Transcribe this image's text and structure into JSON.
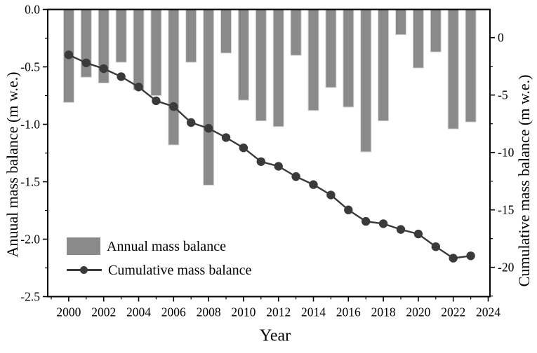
{
  "chart_data": {
    "type": "bar+line",
    "title": "",
    "xlabel": "Year",
    "ylabel_left": "Anuual mass balance (m w.e.)",
    "ylabel_right": "Cumulative mass balance (m w.e.)",
    "years": [
      2000,
      2001,
      2002,
      2003,
      2004,
      2005,
      2006,
      2007,
      2008,
      2009,
      2010,
      2011,
      2012,
      2013,
      2014,
      2015,
      2016,
      2017,
      2018,
      2019,
      2020,
      2021,
      2022,
      2023
    ],
    "series": [
      {
        "name": "Annual mass balance",
        "type": "bar",
        "axis": "left",
        "color": "#8a8a8a",
        "edge_color": "#d8d8d8",
        "values": [
          -0.81,
          -0.59,
          -0.64,
          -0.46,
          -0.7,
          -0.75,
          -1.18,
          -0.46,
          -1.53,
          -0.38,
          -0.79,
          -0.97,
          -1.02,
          -0.4,
          -0.88,
          -0.68,
          -0.85,
          -1.24,
          -0.97,
          -0.22,
          -0.51,
          -0.37,
          -1.04,
          -0.98
        ]
      },
      {
        "name": "Cumulative mass balance",
        "type": "line",
        "axis": "right",
        "color": "#3a3a3a",
        "values": [
          -1.5,
          -2.2,
          -2.7,
          -3.4,
          -4.3,
          -5.5,
          -6.0,
          -7.4,
          -7.9,
          -8.7,
          -9.6,
          -10.8,
          -11.2,
          -12.1,
          -12.8,
          -13.7,
          -15.0,
          -16.0,
          -16.2,
          -16.7,
          -17.1,
          -18.2,
          -19.2,
          -19.0
        ]
      }
    ],
    "xlim": [
      1998.8,
      2024.1
    ],
    "ylim_left": [
      0,
      -2.5
    ],
    "ylim_right": [
      2.45,
      -22.55
    ],
    "xticks": {
      "values": [
        2000,
        2002,
        2004,
        2006,
        2008,
        2010,
        2012,
        2014,
        2016,
        2018,
        2020,
        2022,
        2024
      ],
      "labels": [
        "2000",
        "2002",
        "2004",
        "2006",
        "2008",
        "2010",
        "2012",
        "2014",
        "2016",
        "2018",
        "2020",
        "2022",
        "2024"
      ],
      "minor": [
        1999,
        2001,
        2003,
        2005,
        2007,
        2009,
        2011,
        2013,
        2015,
        2017,
        2019,
        2021,
        2023
      ]
    },
    "yticks_left": {
      "values": [
        0,
        -0.5,
        -1.0,
        -1.5,
        -2.0,
        -2.5
      ],
      "labels": [
        "0.0",
        "-0.5",
        "-1.0",
        "-1.5",
        "-2.0",
        "-2.5"
      ],
      "minor": [
        -0.25,
        -0.75,
        -1.25,
        -1.75,
        -2.25
      ]
    },
    "yticks_right": {
      "values": [
        0,
        -5,
        -10,
        -15,
        -20
      ],
      "labels": [
        "0",
        "-5",
        "-10",
        "-15",
        "-20"
      ],
      "minor": [
        -2.5,
        -7.5,
        -12.5,
        -17.5,
        -22.5
      ]
    },
    "legend": {
      "items": [
        "Annual mass balance",
        "Cumulative mass balance"
      ]
    },
    "colors": {
      "axis": "#000000",
      "background": "#ffffff"
    },
    "grid": false
  }
}
